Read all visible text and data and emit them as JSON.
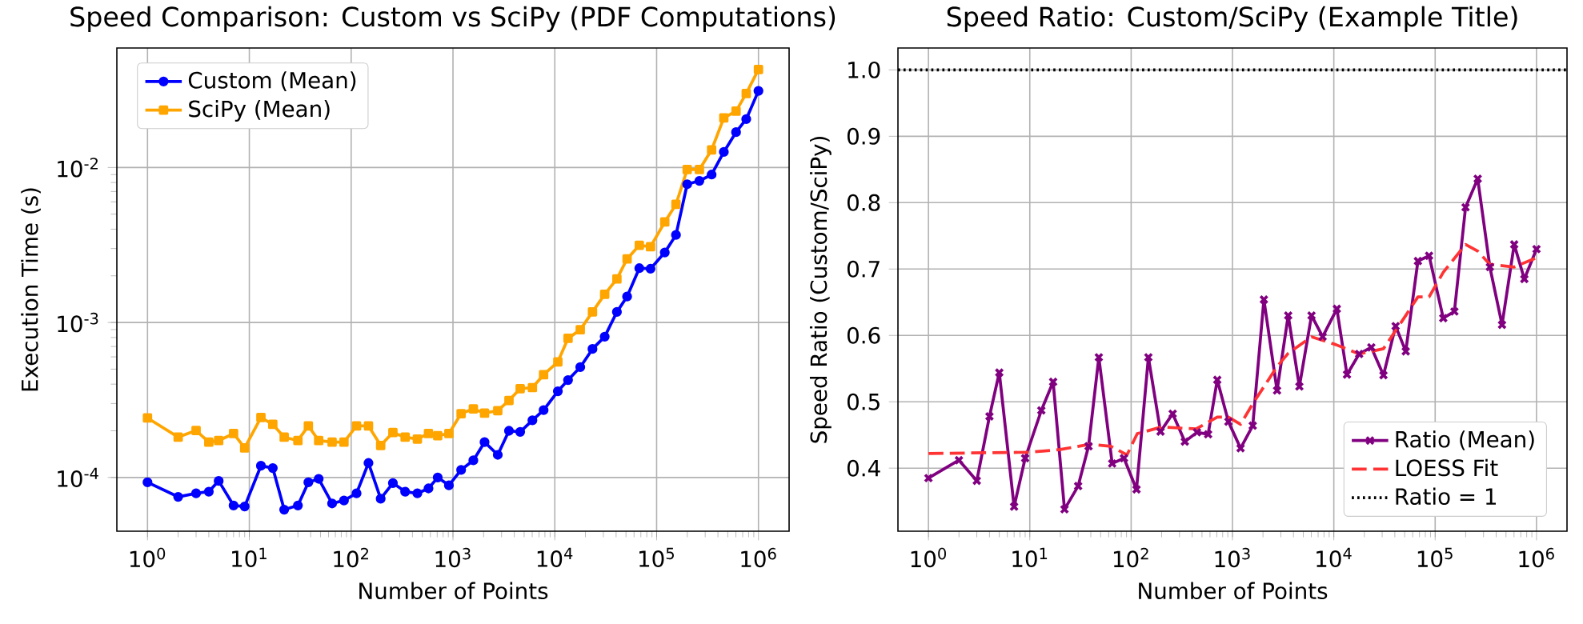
{
  "chart_data": [
    {
      "type": "line",
      "title": "Speed Comparison: Custom vs SciPy (PDF Computations)",
      "xlabel": "Number of Points",
      "ylabel": "Execution Time (s)",
      "log": "xy",
      "grid": true,
      "legend": "top left",
      "xlim": [
        0.5,
        2000000
      ],
      "ylim": [
        4.5e-05,
        0.059
      ],
      "xticks": [
        {
          "value": 1,
          "label": "10$^{0}$"
        },
        {
          "value": 10,
          "label": "10$^{1}$"
        },
        {
          "value": 100,
          "label": "10$^{2}$"
        },
        {
          "value": 1000,
          "label": "10$^{3}$"
        },
        {
          "value": 10000,
          "label": "10$^{4}$"
        },
        {
          "value": 100000,
          "label": "10$^{5}$"
        },
        {
          "value": 1000000,
          "label": "10$^{6}$"
        }
      ],
      "yticks": [
        {
          "value": 0.0001,
          "label": "10$^{-4}$"
        },
        {
          "value": 0.001,
          "label": "10$^{-3}$"
        },
        {
          "value": 0.01,
          "label": "10$^{-2}$"
        }
      ],
      "x": [
        1,
        2,
        3,
        4,
        5,
        7,
        9,
        13,
        17,
        22,
        30,
        38,
        48,
        65,
        85,
        113,
        148,
        195,
        257,
        339,
        447,
        575,
        708,
        912,
        1202,
        1585,
        2042,
        2754,
        3548,
        4571,
        6026,
        7762,
        10715,
        13490,
        17783,
        23442,
        30903,
        40738,
        51286,
        67608,
        87096,
        120226,
        154882,
        199526,
        263027,
        346737,
        457088,
        602560,
        758578,
        1000000
      ],
      "series": [
        {
          "name": "Custom (Mean)",
          "color": "#0000ff",
          "marker": "circle",
          "values": [
            9.3e-05,
            7.5e-05,
            7.9e-05,
            8.1e-05,
            9.5e-05,
            6.6e-05,
            6.5e-05,
            0.000119,
            0.000115,
            6.2e-05,
            6.6e-05,
            9.3e-05,
            9.8e-05,
            6.8e-05,
            7.1e-05,
            7.9e-05,
            0.000124,
            7.3e-05,
            9.2e-05,
            8.1e-05,
            7.9e-05,
            8.5e-05,
            0.0001,
            8.9e-05,
            0.000112,
            0.000129,
            0.000169,
            0.00014,
            0.0002,
            0.000197,
            0.000234,
            0.000272,
            0.00036,
            0.000425,
            0.000515,
            0.000675,
            0.00081,
            0.00117,
            0.00147,
            0.00224,
            0.00222,
            0.00283,
            0.00367,
            0.0078,
            0.0082,
            0.009,
            0.0126,
            0.0169,
            0.0205,
            0.0312
          ]
        },
        {
          "name": "SciPy (Mean)",
          "color": "#ffa500",
          "marker": "square",
          "values": [
            0.000242,
            0.000182,
            0.000201,
            0.000169,
            0.000173,
            0.000192,
            0.000155,
            0.000244,
            0.00022,
            0.000182,
            0.000173,
            0.000215,
            0.000173,
            0.000169,
            0.000169,
            0.000215,
            0.000215,
            0.000161,
            0.000195,
            0.000182,
            0.000177,
            0.000192,
            0.000186,
            0.000192,
            0.000258,
            0.000277,
            0.00026,
            0.00027,
            0.000314,
            0.000374,
            0.00038,
            0.00046,
            0.000557,
            0.00079,
            0.000898,
            0.00117,
            0.00152,
            0.00191,
            0.00257,
            0.00315,
            0.00308,
            0.00445,
            0.00578,
            0.0097,
            0.0097,
            0.013,
            0.0209,
            0.0231,
            0.03,
            0.0429
          ]
        }
      ]
    },
    {
      "type": "line",
      "title": "Speed Ratio: Custom/SciPy (Example Title)",
      "xlabel": "Number of Points",
      "ylabel": "Speed Ratio (Custom/SciPy)",
      "log": "x",
      "grid": true,
      "legend": "bottom right",
      "xlim": [
        0.5,
        2000000
      ],
      "ylim": [
        0.305,
        1.033
      ],
      "xticks": [
        {
          "value": 1,
          "label": "10$^{0}$"
        },
        {
          "value": 10,
          "label": "10$^{1}$"
        },
        {
          "value": 100,
          "label": "10$^{2}$"
        },
        {
          "value": 1000,
          "label": "10$^{3}$"
        },
        {
          "value": 10000,
          "label": "10$^{4}$"
        },
        {
          "value": 100000,
          "label": "10$^{5}$"
        },
        {
          "value": 1000000,
          "label": "10$^{6}$"
        }
      ],
      "yticks": [
        0.4,
        0.5,
        0.6,
        0.7,
        0.8,
        0.9,
        {
          "value": 1.0,
          "label": "1.0"
        }
      ],
      "x": [
        1,
        2,
        3,
        4,
        5,
        7,
        9,
        13,
        17,
        22,
        30,
        38,
        48,
        65,
        85,
        113,
        148,
        195,
        257,
        339,
        447,
        575,
        708,
        912,
        1202,
        1585,
        2042,
        2754,
        3548,
        4571,
        6026,
        7762,
        10715,
        13490,
        17783,
        23442,
        30903,
        40738,
        51286,
        67608,
        87096,
        120226,
        154882,
        199526,
        263027,
        346737,
        457088,
        602560,
        758578,
        1000000
      ],
      "series": [
        {
          "name": "Ratio (Mean)",
          "color": "#800080",
          "marker": "cross",
          "values": [
            0.385,
            0.412,
            0.381,
            0.478,
            0.544,
            0.342,
            0.415,
            0.487,
            0.53,
            0.338,
            0.373,
            0.433,
            0.567,
            0.407,
            0.415,
            0.368,
            0.567,
            0.455,
            0.482,
            0.44,
            0.454,
            0.451,
            0.533,
            0.47,
            0.43,
            0.464,
            0.654,
            0.517,
            0.63,
            0.523,
            0.63,
            0.598,
            0.64,
            0.541,
            0.572,
            0.582,
            0.54,
            0.614,
            0.576,
            0.712,
            0.72,
            0.626,
            0.636,
            0.793,
            0.836,
            0.703,
            0.616,
            0.737,
            0.685,
            0.73
          ]
        },
        {
          "name": "LOESS Fit",
          "color": "#ff3333",
          "type": "line",
          "marker": "none",
          "line_style": "dashed",
          "x": [
            1,
            10,
            20,
            39,
            63,
            91,
            115,
            200,
            437,
            708,
            912,
            1202,
            1585,
            2754,
            3548,
            6026,
            10500,
            17783,
            30903,
            51286,
            67608,
            87096,
            120226,
            199526,
            263027,
            346737,
            602560,
            1000000
          ],
          "values": [
            0.422,
            0.424,
            0.428,
            0.436,
            0.433,
            0.42,
            0.452,
            0.462,
            0.459,
            0.477,
            0.477,
            0.466,
            0.497,
            0.553,
            0.573,
            0.598,
            0.586,
            0.572,
            0.58,
            0.63,
            0.658,
            0.658,
            0.695,
            0.737,
            0.727,
            0.707,
            0.703,
            0.717
          ]
        }
      ],
      "ref_lines": [
        {
          "axis": "y",
          "value": 1.0,
          "label": "Ratio = 1",
          "color": "#000000",
          "line_style": "dotted"
        }
      ]
    }
  ]
}
